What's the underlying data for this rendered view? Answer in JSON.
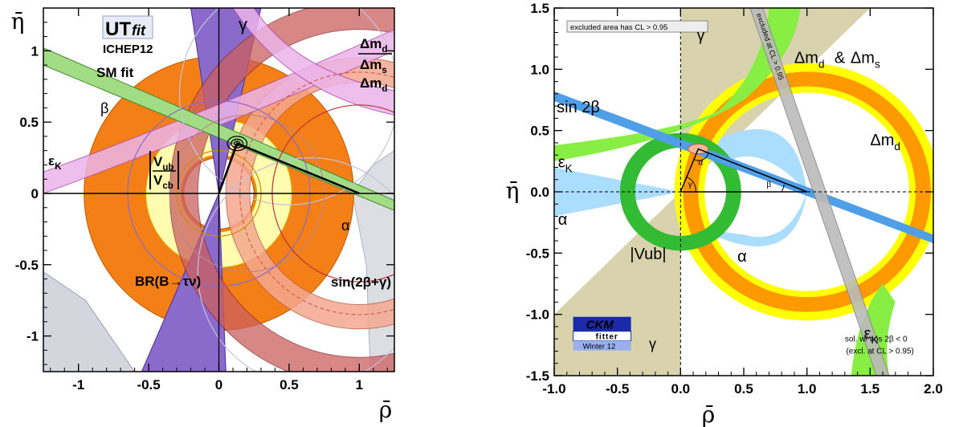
{
  "chart_data": [
    {
      "type": "scatter",
      "xlabel": "ρ̄",
      "ylabel": "η̄",
      "xlim": [
        -1.25,
        1.25
      ],
      "ylim": [
        -1.25,
        1.3
      ],
      "xticks": [
        "-1",
        "-0.5",
        "0",
        "0.5",
        "1"
      ],
      "xtick_values": [
        -1,
        -0.5,
        0,
        0.5,
        1
      ],
      "yticks": [
        "-1",
        "-0.5",
        "0",
        "0.5",
        "1"
      ],
      "ytick_values": [
        -1,
        -0.5,
        0,
        0.5,
        1
      ],
      "logo": {
        "top_left": "UT",
        "top_right": "fit",
        "bottom": "ICHEP12"
      },
      "labels": {
        "sm_fit": "SM fit",
        "gamma": "γ",
        "beta": "β",
        "epsK": "εK",
        "vub_num": "Vub",
        "vub_den": "Vcb",
        "alpha": "α",
        "br": "BR(B→τν)",
        "sin2bg": "sin(2β+γ)",
        "dmd_num": "Δmd",
        "dmd_den": "Δms",
        "dmd": "Δmd"
      },
      "apex": {
        "rho": 0.13,
        "eta": 0.35
      },
      "colors": {
        "orange": "#f47f17",
        "yellow": "#fffcb0",
        "purple": "#8a6bcc",
        "green": "#a2dc85",
        "pink": "#ecb4e9",
        "salmon": "#f4a890",
        "red": "#cc5f5f",
        "grey": "#d4d6de"
      }
    },
    {
      "type": "scatter",
      "xlabel": "ρ̄",
      "ylabel": "η̄",
      "xlim": [
        -1.0,
        2.0
      ],
      "ylim": [
        -1.5,
        1.5
      ],
      "xticks": [
        "-1.0",
        "-0.5",
        "0.0",
        "0.5",
        "1.0",
        "1.5",
        "2.0"
      ],
      "xtick_values": [
        -1.0,
        -0.5,
        0.0,
        0.5,
        1.0,
        1.5,
        2.0
      ],
      "yticks": [
        "-1.5",
        "-1.0",
        "-0.5",
        "0.0",
        "0.5",
        "1.0",
        "1.5"
      ],
      "ytick_values": [
        -1.5,
        -1.0,
        -0.5,
        0.0,
        0.5,
        1.0,
        1.5
      ],
      "labels": {
        "excluded": "excluded area has CL > 0.95",
        "excluded_cl": "excluded at CL > 0.95",
        "gamma": "γ",
        "dm": "Δmd & Δms",
        "sin2b": "sin 2β",
        "dmd": "Δmd",
        "epsK": "εK",
        "alpha": "α",
        "vub": "|Vub|",
        "sol1": "sol. w/ cos 2β < 0",
        "sol2": "(excl. at CL > 0.95)",
        "small_alpha": "α",
        "small_gamma": "γ",
        "small_beta": "β"
      },
      "logo": {
        "top": "CKM",
        "middle": "fitter",
        "bottom": "Winter 12"
      },
      "apex": {
        "rho": 0.14,
        "eta": 0.35
      },
      "colors": {
        "orange": "#ff9900",
        "yellow": "#ffff00",
        "green": "#33bb33",
        "lightgreen": "#88ee44",
        "lightblue": "#aaddff",
        "blue": "#4f9ee8",
        "khaki": "#d8d3ad",
        "salmon": "#f4b89a",
        "grey": "#bbbbbb"
      }
    }
  ]
}
